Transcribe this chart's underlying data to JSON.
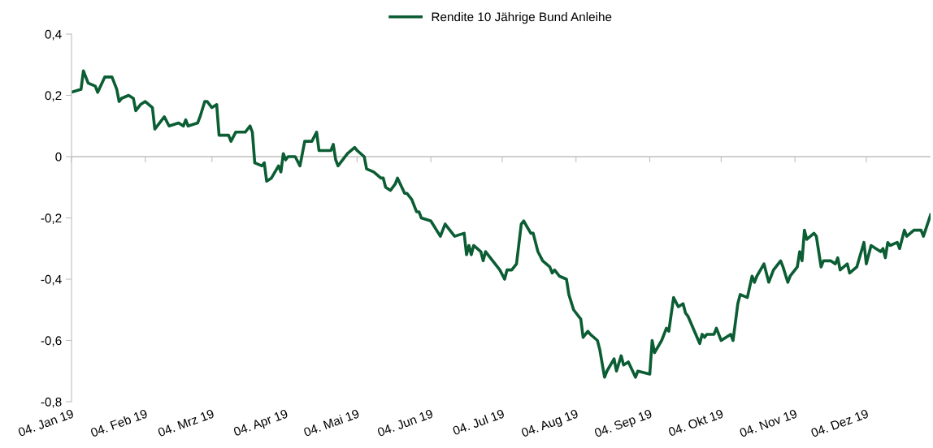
{
  "chart_data": {
    "type": "line",
    "x": [
      "2019-01-04",
      "2019-01-08",
      "2019-01-09",
      "2019-01-11",
      "2019-01-14",
      "2019-01-15",
      "2019-01-18",
      "2019-01-21",
      "2019-01-23",
      "2019-01-24",
      "2019-01-25",
      "2019-01-28",
      "2019-01-30",
      "2019-01-31",
      "2019-02-02",
      "2019-02-04",
      "2019-02-07",
      "2019-02-08",
      "2019-02-12",
      "2019-02-14",
      "2019-02-18",
      "2019-02-20",
      "2019-02-21",
      "2019-02-22",
      "2019-02-26",
      "2019-02-27",
      "2019-03-01",
      "2019-03-02",
      "2019-03-04",
      "2019-03-06",
      "2019-03-07",
      "2019-03-11",
      "2019-03-12",
      "2019-03-14",
      "2019-03-18",
      "2019-03-20",
      "2019-03-21",
      "2019-03-22",
      "2019-03-25",
      "2019-03-26",
      "2019-03-27",
      "2019-03-29",
      "2019-04-01",
      "2019-04-02",
      "2019-04-03",
      "2019-04-04",
      "2019-04-05",
      "2019-04-08",
      "2019-04-10",
      "2019-04-12",
      "2019-04-15",
      "2019-04-17",
      "2019-04-18",
      "2019-04-23",
      "2019-04-24",
      "2019-04-25",
      "2019-04-26",
      "2019-04-30",
      "2019-05-03",
      "2019-05-04",
      "2019-05-07",
      "2019-05-08",
      "2019-05-11",
      "2019-05-14",
      "2019-05-15",
      "2019-05-16",
      "2019-05-18",
      "2019-05-20",
      "2019-05-21",
      "2019-05-24",
      "2019-05-25",
      "2019-05-27",
      "2019-05-29",
      "2019-05-30",
      "2019-05-31",
      "2019-06-04",
      "2019-06-08",
      "2019-06-10",
      "2019-06-12",
      "2019-06-14",
      "2019-06-18",
      "2019-06-19",
      "2019-06-20",
      "2019-06-21",
      "2019-06-22",
      "2019-06-25",
      "2019-06-26",
      "2019-06-27",
      "2019-06-29",
      "2019-07-03",
      "2019-07-05",
      "2019-07-06",
      "2019-07-08",
      "2019-07-10",
      "2019-07-12",
      "2019-07-13",
      "2019-07-16",
      "2019-07-17",
      "2019-07-19",
      "2019-07-21",
      "2019-07-24",
      "2019-07-25",
      "2019-07-26",
      "2019-07-28",
      "2019-07-31",
      "2019-08-01",
      "2019-08-03",
      "2019-08-06",
      "2019-08-07",
      "2019-08-09",
      "2019-08-10",
      "2019-08-13",
      "2019-08-14",
      "2019-08-16",
      "2019-08-17",
      "2019-08-20",
      "2019-08-21",
      "2019-08-23",
      "2019-08-24",
      "2019-08-26",
      "2019-08-29",
      "2019-08-30",
      "2019-09-04",
      "2019-09-05",
      "2019-09-06",
      "2019-09-09",
      "2019-09-11",
      "2019-09-12",
      "2019-09-14",
      "2019-09-16",
      "2019-09-18",
      "2019-09-19",
      "2019-09-20",
      "2019-09-25",
      "2019-09-26",
      "2019-09-27",
      "2019-09-28",
      "2019-10-01",
      "2019-10-02",
      "2019-10-04",
      "2019-10-08",
      "2019-10-09",
      "2019-10-11",
      "2019-10-12",
      "2019-10-15",
      "2019-10-17",
      "2019-10-18",
      "2019-10-19",
      "2019-10-22",
      "2019-10-24",
      "2019-10-26",
      "2019-10-29",
      "2019-10-30",
      "2019-11-01",
      "2019-11-02",
      "2019-11-05",
      "2019-11-06",
      "2019-11-07",
      "2019-11-08",
      "2019-11-09",
      "2019-11-12",
      "2019-11-13",
      "2019-11-15",
      "2019-11-16",
      "2019-11-19",
      "2019-11-21",
      "2019-11-22",
      "2019-11-23",
      "2019-11-26",
      "2019-11-27",
      "2019-11-30",
      "2019-12-03",
      "2019-12-04",
      "2019-12-06",
      "2019-12-10",
      "2019-12-11",
      "2019-12-12",
      "2019-12-13",
      "2019-12-14",
      "2019-12-17",
      "2019-12-18",
      "2019-12-20",
      "2019-12-21",
      "2019-12-24",
      "2019-12-27",
      "2019-12-28",
      "2019-12-31"
    ],
    "series": [
      {
        "name": "Rendite 10 Jährige Bund Anleihe",
        "color": "#0b5d33",
        "values": [
          0.21,
          0.22,
          0.28,
          0.24,
          0.23,
          0.21,
          0.26,
          0.26,
          0.22,
          0.18,
          0.19,
          0.2,
          0.19,
          0.15,
          0.17,
          0.18,
          0.16,
          0.09,
          0.13,
          0.1,
          0.11,
          0.1,
          0.12,
          0.1,
          0.11,
          0.13,
          0.18,
          0.18,
          0.16,
          0.17,
          0.07,
          0.07,
          0.05,
          0.08,
          0.08,
          0.1,
          0.08,
          -0.02,
          -0.03,
          -0.02,
          -0.08,
          -0.07,
          -0.03,
          -0.05,
          0.01,
          -0.01,
          0.0,
          0.0,
          -0.03,
          0.05,
          0.05,
          0.08,
          0.02,
          0.02,
          0.04,
          -0.01,
          -0.03,
          0.01,
          0.03,
          0.02,
          0.0,
          -0.04,
          -0.05,
          -0.07,
          -0.07,
          -0.1,
          -0.11,
          -0.09,
          -0.07,
          -0.12,
          -0.12,
          -0.14,
          -0.18,
          -0.18,
          -0.2,
          -0.21,
          -0.26,
          -0.22,
          -0.24,
          -0.26,
          -0.25,
          -0.32,
          -0.29,
          -0.32,
          -0.29,
          -0.31,
          -0.34,
          -0.31,
          -0.33,
          -0.37,
          -0.4,
          -0.37,
          -0.37,
          -0.35,
          -0.22,
          -0.21,
          -0.25,
          -0.25,
          -0.31,
          -0.34,
          -0.36,
          -0.38,
          -0.37,
          -0.39,
          -0.4,
          -0.45,
          -0.5,
          -0.53,
          -0.59,
          -0.57,
          -0.58,
          -0.6,
          -0.63,
          -0.72,
          -0.7,
          -0.66,
          -0.7,
          -0.65,
          -0.68,
          -0.67,
          -0.72,
          -0.7,
          -0.71,
          -0.6,
          -0.64,
          -0.6,
          -0.56,
          -0.57,
          -0.46,
          -0.49,
          -0.48,
          -0.51,
          -0.52,
          -0.61,
          -0.58,
          -0.59,
          -0.58,
          -0.58,
          -0.56,
          -0.6,
          -0.58,
          -0.6,
          -0.48,
          -0.45,
          -0.46,
          -0.39,
          -0.41,
          -0.39,
          -0.35,
          -0.41,
          -0.37,
          -0.34,
          -0.36,
          -0.41,
          -0.39,
          -0.36,
          -0.31,
          -0.34,
          -0.24,
          -0.27,
          -0.25,
          -0.26,
          -0.36,
          -0.34,
          -0.34,
          -0.35,
          -0.33,
          -0.37,
          -0.35,
          -0.38,
          -0.36,
          -0.28,
          -0.35,
          -0.29,
          -0.31,
          -0.3,
          -0.33,
          -0.28,
          -0.29,
          -0.28,
          -0.3,
          -0.24,
          -0.26,
          -0.24,
          -0.24,
          -0.26,
          -0.19
        ]
      }
    ],
    "xlim": [
      "2019-01-04",
      "2019-12-31"
    ],
    "xticks": [
      {
        "value": "2019-01-04",
        "label": "04. Jan 19"
      },
      {
        "value": "2019-02-04",
        "label": "04. Feb 19"
      },
      {
        "value": "2019-03-04",
        "label": "04. Mrz 19"
      },
      {
        "value": "2019-04-04",
        "label": "04. Apr 19"
      },
      {
        "value": "2019-05-04",
        "label": "04. Mai 19"
      },
      {
        "value": "2019-06-04",
        "label": "04. Jun 19"
      },
      {
        "value": "2019-07-04",
        "label": "04. Jul 19"
      },
      {
        "value": "2019-08-04",
        "label": "04. Aug 19"
      },
      {
        "value": "2019-09-04",
        "label": "04. Sep 19"
      },
      {
        "value": "2019-10-04",
        "label": "04. Okt 19"
      },
      {
        "value": "2019-11-04",
        "label": "04. Nov 19"
      },
      {
        "value": "2019-12-04",
        "label": "04. Dez 19"
      }
    ],
    "ylim": [
      -0.8,
      0.4
    ],
    "yticks": [
      {
        "value": -0.8,
        "label": "-0,8"
      },
      {
        "value": -0.6,
        "label": "-0,6"
      },
      {
        "value": -0.4,
        "label": "-0,4"
      },
      {
        "value": -0.2,
        "label": "-0,2"
      },
      0,
      {
        "value": 0.2,
        "label": "0,2"
      },
      {
        "value": 0.4,
        "label": "0,4"
      }
    ],
    "ref_lines": [
      {
        "axis": "y",
        "value": 0,
        "color": "#bfbfbf"
      }
    ],
    "legend": "top",
    "grid": false,
    "marker": "none",
    "line_style": "solid"
  }
}
